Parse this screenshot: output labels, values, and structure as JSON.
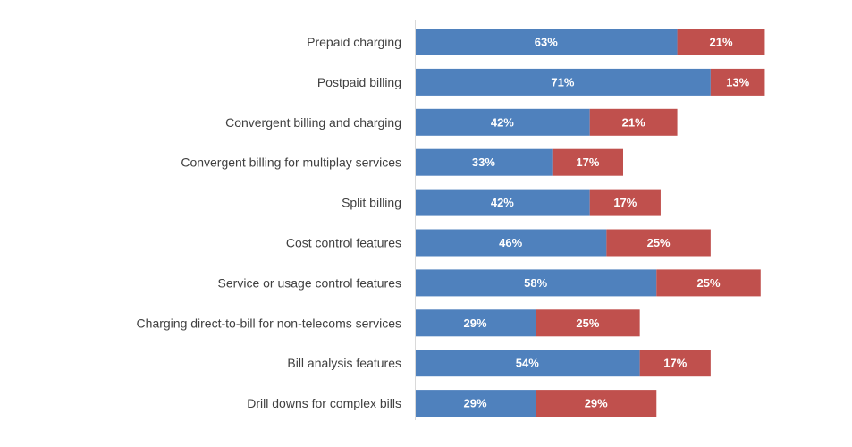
{
  "chart_data": {
    "type": "bar",
    "orientation": "horizontal",
    "stacked": true,
    "categories": [
      "Prepaid charging",
      "Postpaid billing",
      "Convergent billing and charging",
      "Convergent billing for multiplay services",
      "Split billing",
      "Cost control features",
      "Service or usage control features",
      "Charging direct-to-bill for non-telecoms services",
      "Bill analysis features",
      "Drill downs for complex bills"
    ],
    "series": [
      {
        "values": [
          63,
          71,
          42,
          33,
          42,
          46,
          58,
          29,
          54,
          29
        ],
        "color": "#4f81bd"
      },
      {
        "values": [
          21,
          13,
          21,
          17,
          17,
          25,
          25,
          25,
          17,
          29
        ],
        "color": "#c0504d"
      }
    ],
    "value_suffix": "%",
    "xlim": [
      0,
      84
    ],
    "grid": false,
    "legend": "none"
  }
}
